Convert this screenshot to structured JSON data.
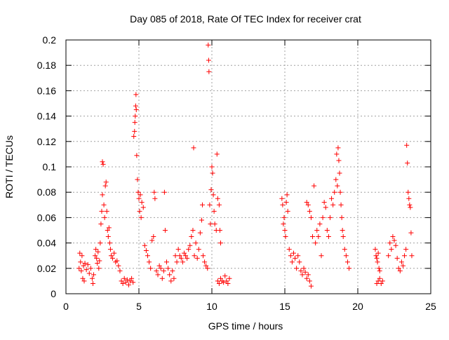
{
  "chart_data": {
    "type": "scatter",
    "title": "Day 085 of 2018, Rate Of TEC Index for receiver crat",
    "xlabel": "GPS time / hours",
    "ylabel": "ROTI / TECUs",
    "xlim": [
      0,
      25
    ],
    "ylim": [
      0,
      0.2
    ],
    "xticks": [
      0,
      5,
      10,
      15,
      20,
      25
    ],
    "yticks": [
      0,
      0.02,
      0.04,
      0.06,
      0.08,
      0.1,
      0.12,
      0.14,
      0.16,
      0.18,
      0.2
    ],
    "ytick_labels": [
      "0",
      "0.02",
      "0.04",
      "0.06",
      "0.08",
      "0.1",
      "0.12",
      "0.14",
      "0.16",
      "0.18",
      "0.2"
    ],
    "grid": true,
    "marker": "+",
    "color": "#ff0000",
    "series": [
      {
        "points": [
          [
            0.9,
            0.02
          ],
          [
            0.95,
            0.032
          ],
          [
            1.0,
            0.025
          ],
          [
            1.05,
            0.018
          ],
          [
            1.1,
            0.03
          ],
          [
            1.15,
            0.012
          ],
          [
            1.2,
            0.022
          ],
          [
            1.25,
            0.01
          ],
          [
            1.3,
            0.024
          ],
          [
            1.4,
            0.019
          ],
          [
            1.5,
            0.023
          ],
          [
            1.6,
            0.016
          ],
          [
            1.7,
            0.02
          ],
          [
            1.8,
            0.012
          ],
          [
            1.85,
            0.008
          ],
          [
            1.9,
            0.015
          ],
          [
            2.0,
            0.03
          ],
          [
            2.05,
            0.035
          ],
          [
            2.1,
            0.028
          ],
          [
            2.15,
            0.024
          ],
          [
            2.2,
            0.033
          ],
          [
            2.25,
            0.02
          ],
          [
            2.3,
            0.026
          ],
          [
            2.35,
            0.04
          ],
          [
            2.4,
            0.055
          ],
          [
            2.45,
            0.065
          ],
          [
            2.5,
            0.078
          ],
          [
            2.5,
            0.104
          ],
          [
            2.55,
            0.102
          ],
          [
            2.6,
            0.07
          ],
          [
            2.65,
            0.06
          ],
          [
            2.7,
            0.085
          ],
          [
            2.75,
            0.088
          ],
          [
            2.8,
            0.065
          ],
          [
            2.85,
            0.05
          ],
          [
            2.9,
            0.045
          ],
          [
            2.95,
            0.052
          ],
          [
            3.0,
            0.04
          ],
          [
            3.05,
            0.035
          ],
          [
            3.1,
            0.03
          ],
          [
            3.2,
            0.028
          ],
          [
            3.3,
            0.032
          ],
          [
            3.4,
            0.025
          ],
          [
            3.5,
            0.026
          ],
          [
            3.6,
            0.022
          ],
          [
            3.7,
            0.018
          ],
          [
            3.8,
            0.01
          ],
          [
            3.9,
            0.008
          ],
          [
            4.0,
            0.012
          ],
          [
            4.1,
            0.009
          ],
          [
            4.2,
            0.011
          ],
          [
            4.3,
            0.007
          ],
          [
            4.4,
            0.01
          ],
          [
            4.5,
            0.012
          ],
          [
            4.6,
            0.009
          ],
          [
            4.65,
            0.124
          ],
          [
            4.7,
            0.128
          ],
          [
            4.72,
            0.135
          ],
          [
            4.75,
            0.14
          ],
          [
            4.78,
            0.148
          ],
          [
            4.8,
            0.157
          ],
          [
            4.82,
            0.145
          ],
          [
            4.85,
            0.109
          ],
          [
            4.9,
            0.09
          ],
          [
            4.95,
            0.08
          ],
          [
            5.0,
            0.075
          ],
          [
            5.05,
            0.065
          ],
          [
            5.1,
            0.078
          ],
          [
            5.15,
            0.06
          ],
          [
            5.2,
            0.072
          ],
          [
            5.3,
            0.068
          ],
          [
            5.4,
            0.038
          ],
          [
            5.5,
            0.034
          ],
          [
            5.6,
            0.03
          ],
          [
            5.7,
            0.025
          ],
          [
            5.8,
            0.02
          ],
          [
            5.9,
            0.042
          ],
          [
            6.0,
            0.045
          ],
          [
            6.05,
            0.08
          ],
          [
            6.1,
            0.075
          ],
          [
            6.2,
            0.018
          ],
          [
            6.3,
            0.015
          ],
          [
            6.4,
            0.022
          ],
          [
            6.5,
            0.02
          ],
          [
            6.6,
            0.012
          ],
          [
            6.7,
            0.018
          ],
          [
            6.75,
            0.08
          ],
          [
            6.8,
            0.05
          ],
          [
            6.9,
            0.025
          ],
          [
            7.0,
            0.02
          ],
          [
            7.1,
            0.015
          ],
          [
            7.2,
            0.01
          ],
          [
            7.3,
            0.018
          ],
          [
            7.4,
            0.012
          ],
          [
            7.5,
            0.03
          ],
          [
            7.6,
            0.025
          ],
          [
            7.7,
            0.035
          ],
          [
            7.8,
            0.03
          ],
          [
            7.9,
            0.028
          ],
          [
            8.0,
            0.025
          ],
          [
            8.1,
            0.032
          ],
          [
            8.2,
            0.03
          ],
          [
            8.3,
            0.028
          ],
          [
            8.4,
            0.035
          ],
          [
            8.5,
            0.038
          ],
          [
            8.6,
            0.045
          ],
          [
            8.7,
            0.05
          ],
          [
            8.75,
            0.115
          ],
          [
            8.8,
            0.03
          ],
          [
            8.9,
            0.04
          ],
          [
            9.0,
            0.028
          ],
          [
            9.1,
            0.035
          ],
          [
            9.2,
            0.048
          ],
          [
            9.3,
            0.058
          ],
          [
            9.35,
            0.07
          ],
          [
            9.4,
            0.03
          ],
          [
            9.5,
            0.025
          ],
          [
            9.6,
            0.022
          ],
          [
            9.7,
            0.02
          ],
          [
            9.75,
            0.196
          ],
          [
            9.78,
            0.184
          ],
          [
            9.8,
            0.175
          ],
          [
            9.85,
            0.07
          ],
          [
            9.9,
            0.055
          ],
          [
            9.95,
            0.082
          ],
          [
            10.0,
            0.1
          ],
          [
            10.05,
            0.095
          ],
          [
            10.1,
            0.078
          ],
          [
            10.15,
            0.065
          ],
          [
            10.2,
            0.055
          ],
          [
            10.3,
            0.05
          ],
          [
            10.35,
            0.11
          ],
          [
            10.4,
            0.075
          ],
          [
            10.5,
            0.07
          ],
          [
            10.55,
            0.05
          ],
          [
            10.6,
            0.04
          ],
          [
            10.4,
            0.01
          ],
          [
            10.5,
            0.008
          ],
          [
            10.6,
            0.012
          ],
          [
            10.7,
            0.01
          ],
          [
            10.8,
            0.009
          ],
          [
            10.9,
            0.014
          ],
          [
            11.0,
            0.01
          ],
          [
            11.1,
            0.008
          ],
          [
            11.2,
            0.012
          ],
          [
            14.8,
            0.075
          ],
          [
            14.85,
            0.07
          ],
          [
            14.9,
            0.055
          ],
          [
            14.95,
            0.06
          ],
          [
            15.0,
            0.05
          ],
          [
            15.05,
            0.045
          ],
          [
            15.1,
            0.072
          ],
          [
            15.15,
            0.078
          ],
          [
            15.2,
            0.065
          ],
          [
            15.3,
            0.035
          ],
          [
            15.4,
            0.03
          ],
          [
            15.5,
            0.025
          ],
          [
            15.6,
            0.032
          ],
          [
            15.7,
            0.028
          ],
          [
            15.8,
            0.02
          ],
          [
            15.9,
            0.03
          ],
          [
            16.0,
            0.025
          ],
          [
            16.1,
            0.018
          ],
          [
            16.2,
            0.015
          ],
          [
            16.3,
            0.02
          ],
          [
            16.4,
            0.017
          ],
          [
            16.5,
            0.012
          ],
          [
            16.6,
            0.015
          ],
          [
            16.7,
            0.01
          ],
          [
            16.8,
            0.006
          ],
          [
            16.5,
            0.072
          ],
          [
            16.6,
            0.07
          ],
          [
            16.7,
            0.065
          ],
          [
            16.8,
            0.06
          ],
          [
            16.9,
            0.045
          ],
          [
            17.0,
            0.085
          ],
          [
            17.1,
            0.04
          ],
          [
            17.2,
            0.05
          ],
          [
            17.3,
            0.045
          ],
          [
            17.4,
            0.055
          ],
          [
            17.5,
            0.03
          ],
          [
            17.6,
            0.06
          ],
          [
            17.7,
            0.072
          ],
          [
            17.8,
            0.068
          ],
          [
            17.9,
            0.05
          ],
          [
            18.0,
            0.045
          ],
          [
            18.1,
            0.06
          ],
          [
            18.2,
            0.075
          ],
          [
            18.3,
            0.07
          ],
          [
            18.4,
            0.08
          ],
          [
            18.5,
            0.09
          ],
          [
            18.55,
            0.11
          ],
          [
            18.6,
            0.085
          ],
          [
            18.65,
            0.115
          ],
          [
            18.7,
            0.105
          ],
          [
            18.75,
            0.095
          ],
          [
            18.8,
            0.08
          ],
          [
            18.85,
            0.07
          ],
          [
            18.9,
            0.06
          ],
          [
            18.95,
            0.05
          ],
          [
            19.0,
            0.045
          ],
          [
            19.1,
            0.035
          ],
          [
            19.2,
            0.03
          ],
          [
            19.3,
            0.025
          ],
          [
            19.4,
            0.02
          ],
          [
            21.2,
            0.035
          ],
          [
            21.25,
            0.03
          ],
          [
            21.3,
            0.028
          ],
          [
            21.35,
            0.025
          ],
          [
            21.4,
            0.032
          ],
          [
            21.45,
            0.02
          ],
          [
            21.5,
            0.018
          ],
          [
            21.3,
            0.008
          ],
          [
            21.4,
            0.01
          ],
          [
            21.5,
            0.012
          ],
          [
            21.6,
            0.008
          ],
          [
            21.7,
            0.01
          ],
          [
            22.1,
            0.03
          ],
          [
            22.2,
            0.04
          ],
          [
            22.3,
            0.035
          ],
          [
            22.4,
            0.045
          ],
          [
            22.5,
            0.042
          ],
          [
            22.6,
            0.038
          ],
          [
            22.7,
            0.028
          ],
          [
            22.8,
            0.02
          ],
          [
            22.9,
            0.018
          ],
          [
            23.0,
            0.025
          ],
          [
            23.1,
            0.022
          ],
          [
            23.2,
            0.03
          ],
          [
            23.3,
            0.035
          ],
          [
            23.35,
            0.117
          ],
          [
            23.4,
            0.103
          ],
          [
            23.45,
            0.08
          ],
          [
            23.5,
            0.075
          ],
          [
            23.55,
            0.07
          ],
          [
            23.6,
            0.068
          ],
          [
            23.65,
            0.048
          ],
          [
            23.7,
            0.03
          ]
        ]
      }
    ]
  }
}
